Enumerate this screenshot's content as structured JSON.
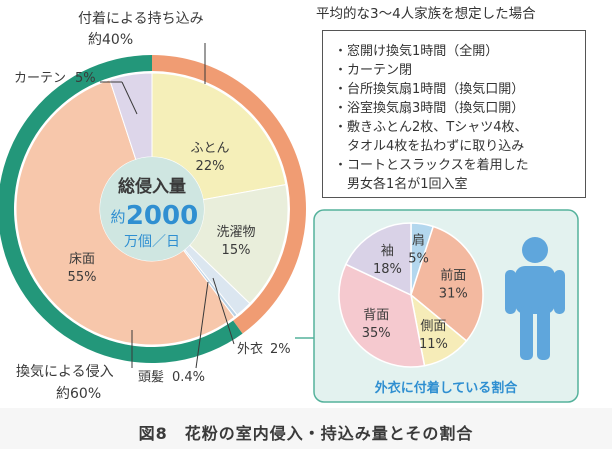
{
  "chart_data": [
    {
      "type": "pie",
      "subtype": "double-ring",
      "center_text": {
        "title": "総侵入量",
        "prefix": "約",
        "value": "2000",
        "unit": "万個／日"
      },
      "outer_ring": [
        {
          "label": "付着による持ち込み",
          "sub": "約40%",
          "value": 40,
          "color": "#f09c73"
        },
        {
          "label": "換気による侵入",
          "sub": "約60%",
          "value": 60,
          "color": "#23977a"
        }
      ],
      "inner_ring": [
        {
          "label": "ふとん",
          "value_text": "22%",
          "value": 22,
          "color": "#f5efb9"
        },
        {
          "label": "洗濯物",
          "value_text": "15%",
          "value": 15,
          "color": "#e9eedb"
        },
        {
          "label": "外衣",
          "value_text": "2%",
          "value": 2,
          "color": "#dbe6f0"
        },
        {
          "label": "頭髪",
          "value_text": "0.4%",
          "value": 0.4,
          "color": "#bbd2e6"
        },
        {
          "label": "床面",
          "value_text": "55%",
          "value": 55,
          "color": "#f7c7ab"
        },
        {
          "label": "カーテン",
          "value_text": "5%",
          "value": 5,
          "color": "#ddd6ea"
        }
      ]
    },
    {
      "type": "pie",
      "title": "外衣に付着している割合",
      "slices": [
        {
          "label": "肩",
          "value_text": "5%",
          "value": 5,
          "color": "#b3d7ee"
        },
        {
          "label": "前面",
          "value_text": "31%",
          "value": 31,
          "color": "#f3b9a0"
        },
        {
          "label": "側面",
          "value_text": "11%",
          "value": 11,
          "color": "#f6ecb8"
        },
        {
          "label": "背面",
          "value_text": "35%",
          "value": 35,
          "color": "#f5c9cf"
        },
        {
          "label": "袖",
          "value_text": "18%",
          "value": 18,
          "color": "#d9d2e7"
        }
      ]
    }
  ],
  "conditions": {
    "title": "平均的な3～4人家族を想定した場合",
    "items": [
      "・窓開け換気1時間（全開）",
      "・カーテン閉",
      "・台所換気扇1時間（換気口開）",
      "・浴室換気扇3時間（換気口開）",
      "・敷きふとん2枚、Tシャツ4枚、",
      "　タオル4枚を払わずに取り込み",
      "・コートとスラックスを着用した",
      "　男女各1名が1回入室"
    ]
  },
  "caption": "図8　花粉の室内侵入・持込み量とその割合",
  "colors": {
    "figure": "#5fa6dc",
    "panel": "#e3f2ef",
    "panel_border": "#55b29c",
    "accent_text": "#2f8fd1"
  }
}
